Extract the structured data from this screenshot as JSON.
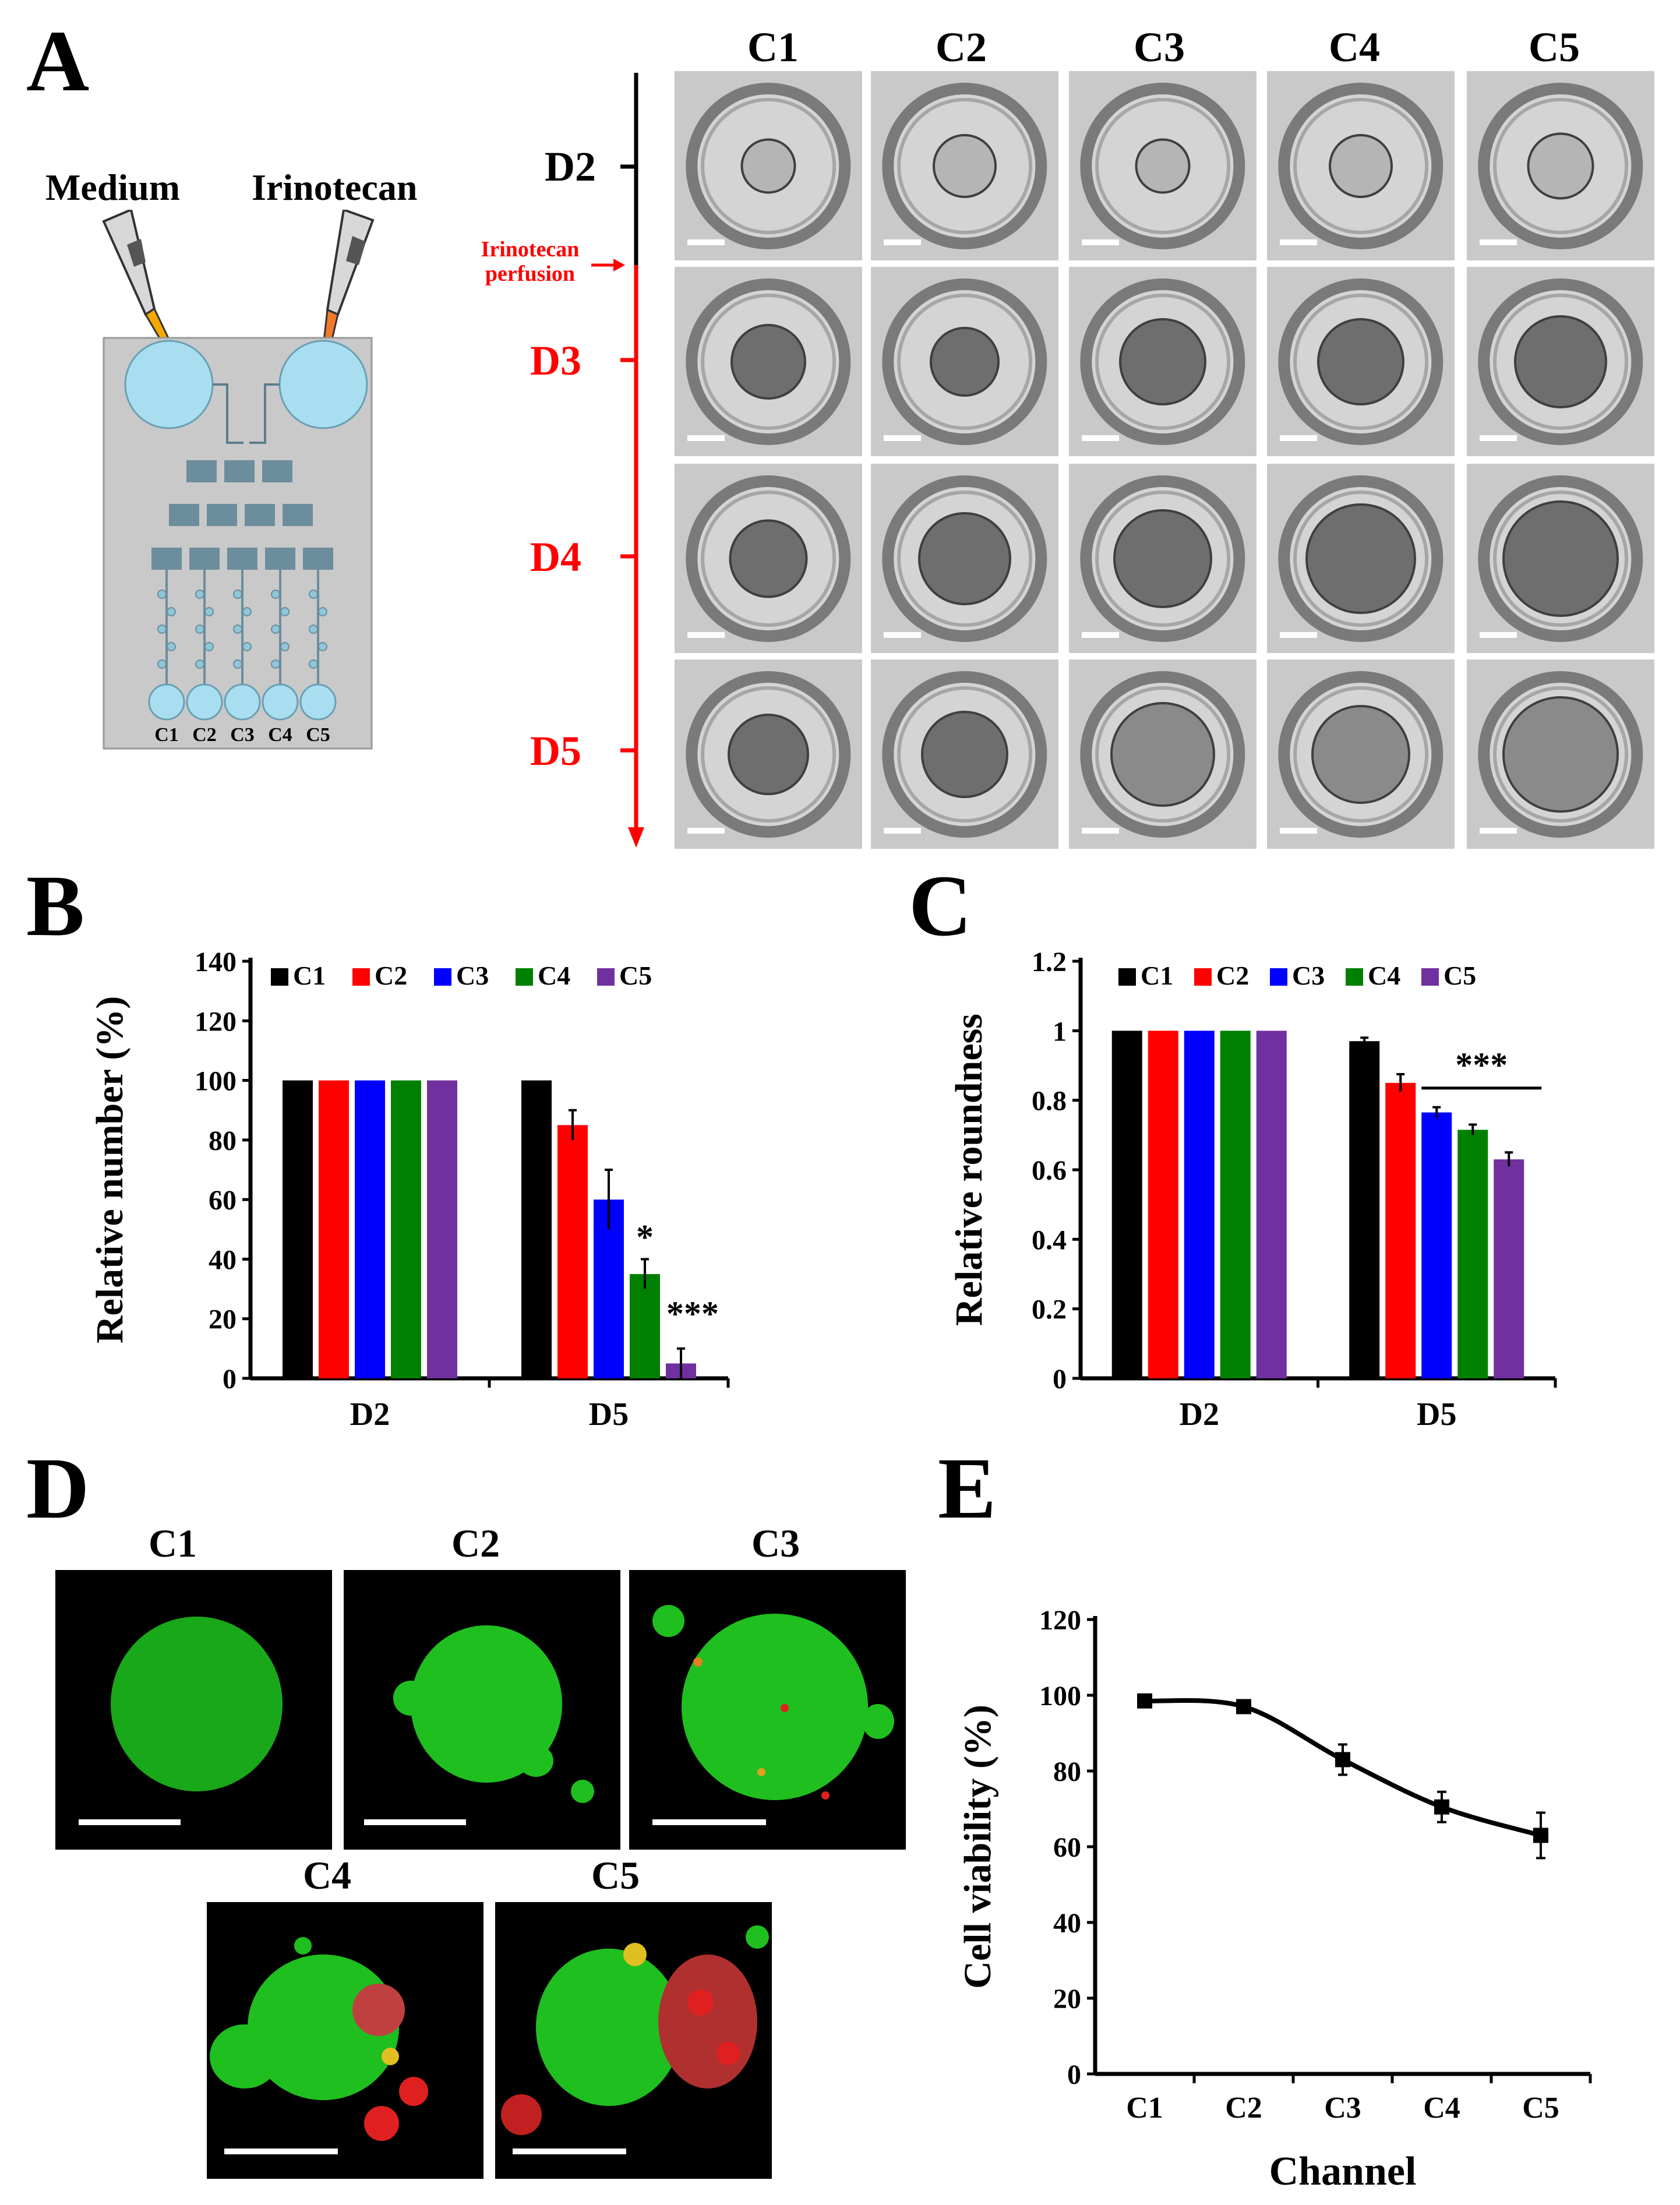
{
  "panels": {
    "A": "A",
    "B": "B",
    "C": "C",
    "D": "D",
    "E": "E"
  },
  "panel_a": {
    "medium_label": "Medium",
    "drug_label": "Irinotecan",
    "chip_channels": [
      "C1",
      "C2",
      "C3",
      "C4",
      "C5"
    ],
    "columns": [
      "C1",
      "C2",
      "C3",
      "C4",
      "C5"
    ],
    "days": [
      "D2",
      "D3",
      "D4",
      "D5"
    ],
    "perfusion_label_line1": "Irinotecan",
    "perfusion_label_line2": "perfusion",
    "colors": {
      "chip_bg": "#c9c9c9",
      "reservoir": "#a8def0",
      "medium_tip": "#f5a800",
      "drug_tip": "#f07a2a",
      "highlight": "#ff0000"
    }
  },
  "panel_d": {
    "top_labels": [
      "C1",
      "C2",
      "C3"
    ],
    "bottom_labels": [
      "C4",
      "C5"
    ],
    "colors": {
      "live": "#1fbf1f",
      "dead": "#e02020"
    }
  },
  "chart_data": [
    {
      "type": "bar",
      "panel": "B",
      "categories": [
        "D2",
        "D5"
      ],
      "series": [
        {
          "name": "C1",
          "color": "#000000",
          "values": [
            100,
            100
          ],
          "errors": [
            0,
            0
          ]
        },
        {
          "name": "C2",
          "color": "#ff0000",
          "values": [
            100,
            85
          ],
          "errors": [
            0,
            5
          ]
        },
        {
          "name": "C3",
          "color": "#0000ff",
          "values": [
            100,
            60
          ],
          "errors": [
            0,
            10
          ]
        },
        {
          "name": "C4",
          "color": "#008000",
          "values": [
            100,
            35
          ],
          "errors": [
            0,
            5
          ]
        },
        {
          "name": "C5",
          "color": "#7030a0",
          "values": [
            100,
            5
          ],
          "errors": [
            0,
            5
          ]
        }
      ],
      "annotations": {
        "C4_D5": "*",
        "C5_D5": "***"
      },
      "ylabel": "Relative number (%)",
      "xlabel": "",
      "ylim": [
        0,
        140
      ],
      "yticks": [
        "0",
        "20",
        "40",
        "60",
        "80",
        "100",
        "120",
        "140"
      ],
      "legend": "top"
    },
    {
      "type": "bar",
      "panel": "C",
      "categories": [
        "D2",
        "D5"
      ],
      "series": [
        {
          "name": "C1",
          "color": "#000000",
          "values": [
            1,
            0.97
          ],
          "errors": [
            0,
            0.01
          ]
        },
        {
          "name": "C2",
          "color": "#ff0000",
          "values": [
            1,
            0.85
          ],
          "errors": [
            0,
            0.025
          ]
        },
        {
          "name": "C3",
          "color": "#0000ff",
          "values": [
            1,
            0.765
          ],
          "errors": [
            0,
            0.015
          ]
        },
        {
          "name": "C4",
          "color": "#008000",
          "values": [
            1,
            0.715
          ],
          "errors": [
            0,
            0.015
          ]
        },
        {
          "name": "C5",
          "color": "#7030a0",
          "values": [
            1,
            0.63
          ],
          "errors": [
            0,
            0.02
          ]
        }
      ],
      "annotations": {
        "D5_bracket": "***"
      },
      "ylabel": "Relative roundness",
      "xlabel": "",
      "ylim": [
        0,
        1.2
      ],
      "yticks": [
        "0",
        "0.2",
        "0.4",
        "0.6",
        "0.8",
        "1",
        "1.2"
      ],
      "legend": "top"
    },
    {
      "type": "line",
      "panel": "E",
      "categories": [
        "C1",
        "C2",
        "C3",
        "C4",
        "C5"
      ],
      "series": [
        {
          "name": "",
          "color": "#000000",
          "values": [
            98.5,
            97,
            83,
            70.5,
            63
          ],
          "errors": [
            1,
            1,
            4,
            4,
            6
          ]
        }
      ],
      "ylabel": "Cell viability (%)",
      "xlabel": "Channel",
      "ylim": [
        0,
        120
      ],
      "yticks": [
        "0",
        "20",
        "40",
        "60",
        "80",
        "100",
        "120"
      ]
    }
  ]
}
